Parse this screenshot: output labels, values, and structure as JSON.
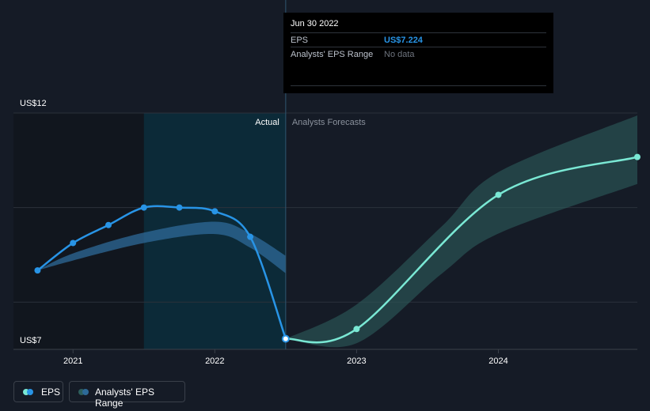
{
  "colors": {
    "background": "#151b26",
    "eps_line": "#2894e6",
    "forecast_line": "#7ae8d4",
    "range_band_past": "#2d6a98",
    "range_band_future": "#2d5e5c",
    "actual_shade": "#0c2a38",
    "eps_value": "#2894e6",
    "grid": "#2b313b"
  },
  "tooltip": {
    "date": "Jun 30 2022",
    "eps_label": "EPS",
    "eps_value": "US$7.224",
    "range_label": "Analysts' EPS Range",
    "range_value": "No data"
  },
  "legend": {
    "eps_label": "EPS",
    "range_label": "Analysts' EPS Range",
    "eps_icon": "eps-legend-dot-icon",
    "range_icon": "range-legend-dot-icon"
  },
  "chart_data": {
    "type": "line",
    "title": "",
    "xlabel": "",
    "ylabel": "",
    "xlim": [
      2020.58,
      2024.98
    ],
    "ylim": [
      7,
      12
    ],
    "y_tick_labels": [
      {
        "value": 12,
        "label": "US$12"
      },
      {
        "value": 7,
        "label": "US$7"
      }
    ],
    "gridlines": [
      12,
      10,
      8,
      7
    ],
    "x_ticks": [
      {
        "value": 2021,
        "label": "2021"
      },
      {
        "value": 2022,
        "label": "2022"
      },
      {
        "value": 2023,
        "label": "2023"
      },
      {
        "value": 2024,
        "label": "2024"
      }
    ],
    "region_labels": {
      "actual": "Actual",
      "forecast": "Analysts Forecasts"
    },
    "past_shade_start": 2021.5,
    "divider_x": 2022.5,
    "series": [
      {
        "name": "EPS",
        "points": [
          [
            2020.75,
            8.67
          ],
          [
            2021.0,
            9.25
          ],
          [
            2021.25,
            9.63
          ],
          [
            2021.5,
            10.0
          ],
          [
            2021.75,
            10.0
          ],
          [
            2022.0,
            9.92
          ],
          [
            2022.25,
            9.38
          ],
          [
            2022.5,
            7.224
          ]
        ]
      },
      {
        "name": "EPS Forecast",
        "points": [
          [
            2022.5,
            7.224
          ],
          [
            2023.0,
            7.43
          ],
          [
            2024.0,
            10.27
          ],
          [
            2024.98,
            11.07
          ]
        ]
      }
    ],
    "range_bands": [
      {
        "name": "Analysts' EPS Range (past)",
        "upper": [
          [
            2020.75,
            8.67
          ],
          [
            2021.0,
            9.03
          ],
          [
            2021.5,
            9.47
          ],
          [
            2022.0,
            9.7
          ],
          [
            2022.25,
            9.45
          ],
          [
            2022.5,
            8.98
          ]
        ],
        "lower": [
          [
            2020.75,
            8.67
          ],
          [
            2021.0,
            8.88
          ],
          [
            2021.5,
            9.25
          ],
          [
            2022.0,
            9.44
          ],
          [
            2022.25,
            9.15
          ],
          [
            2022.5,
            8.61
          ]
        ]
      },
      {
        "name": "Analysts' EPS Range (forecast)",
        "upper": [
          [
            2022.5,
            7.224
          ],
          [
            2023.0,
            7.95
          ],
          [
            2023.6,
            9.6
          ],
          [
            2024.0,
            10.75
          ],
          [
            2024.98,
            11.95
          ]
        ],
        "lower": [
          [
            2022.5,
            7.224
          ],
          [
            2023.0,
            7.13
          ],
          [
            2023.6,
            8.6
          ],
          [
            2024.0,
            9.45
          ],
          [
            2024.98,
            10.5
          ]
        ]
      }
    ]
  }
}
